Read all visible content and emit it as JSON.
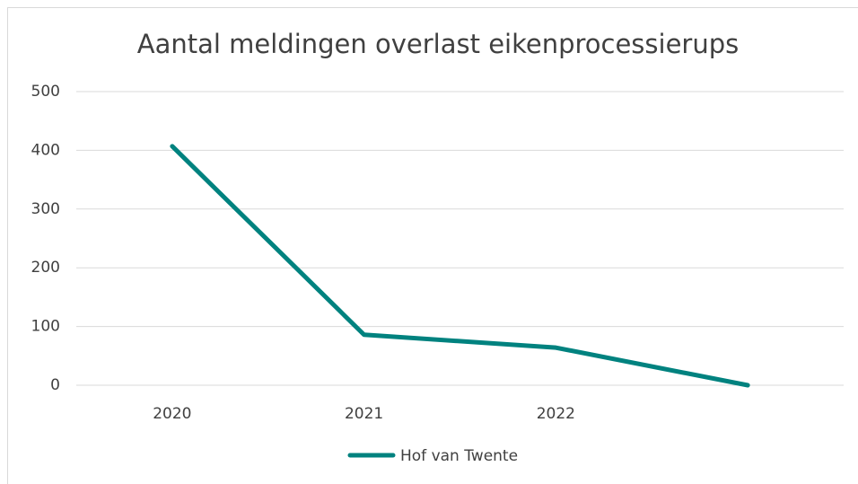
{
  "chart_data": {
    "type": "line",
    "title": "Aantal meldingen overlast eikenprocessierups",
    "categories": [
      "2020",
      "2021",
      "2022",
      null
    ],
    "series": [
      {
        "name": "Hof van Twente",
        "color": "#00827f",
        "values": [
          407,
          86,
          64,
          0
        ]
      }
    ],
    "ylim": [
      0,
      500
    ],
    "yticks": [
      0,
      100,
      200,
      300,
      400,
      500
    ],
    "grid": true,
    "legend": "bottom"
  }
}
